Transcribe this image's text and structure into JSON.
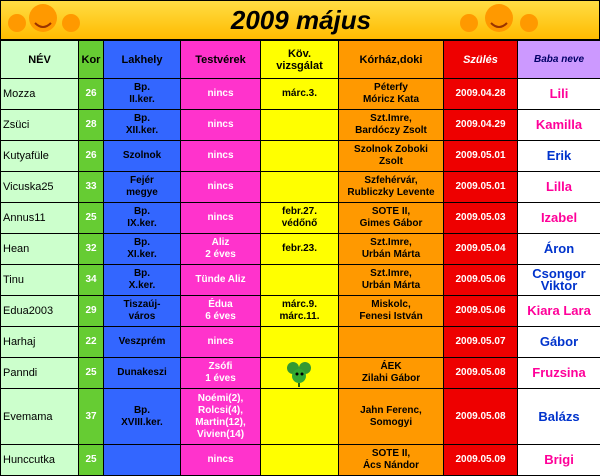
{
  "title": "2009 május",
  "table": {
    "header": [
      "NÉV",
      "Kor",
      "Lakhely",
      "Testvérek",
      "Köv.\nvizsgálat",
      "Kórház,doki",
      "Szülés",
      "Baba neve"
    ],
    "column_colors": [
      "#ccffcc",
      "#66cc33",
      "#3366ff",
      "#ff33cc",
      "#ffff00",
      "#ff9900",
      "#ee0000",
      "#ffffff"
    ],
    "baby_name_colors": [
      "#ff0099",
      "#ff0099",
      "#0033cc",
      "#ff0099",
      "#ff0099",
      "#0033cc",
      "#0033cc",
      "#ff0099",
      "#0033cc",
      "#ff0099",
      "#0033cc",
      "#ff0099"
    ],
    "rows": [
      [
        "Mozza",
        "26",
        "Bp.\nII.ker.",
        "nincs",
        "márc.3.",
        "Péterfy\nMóricz Kata",
        "2009.04.28",
        "Lili"
      ],
      [
        "Zsüci",
        "28",
        "Bp.\nXII.ker.",
        "nincs",
        null,
        "Szt.Imre,\nBardóczy Zsolt",
        "2009.04.29",
        "Kamilla"
      ],
      [
        "Kutyafüle",
        "26",
        "Szolnok",
        "nincs",
        null,
        "Szolnok Zoboki\nZsolt",
        "2009.05.01",
        "Erik"
      ],
      [
        "Vicuska25",
        "33",
        "Fejér\nmegye",
        "nincs",
        null,
        "Szfehérvár,\nRubliczky Levente",
        "2009.05.01",
        "Lilla"
      ],
      [
        "Annus11",
        "25",
        "Bp.\nIX.ker.",
        "nincs",
        "febr.27.\nvédőnő",
        "SOTE II,\nGimes Gábor",
        "2009.05.03",
        "Izabel"
      ],
      [
        "Hean",
        "32",
        "Bp.\nXI.ker.",
        "Aliz\n2 éves",
        "febr.23.",
        "Szt.Imre,\nUrbán Márta",
        "2009.05.04",
        "Áron"
      ],
      [
        "Tinu",
        "34",
        "Bp.\nX.ker.",
        "Tünde Aliz",
        null,
        "Szt.Imre,\nUrbán Márta",
        "2009.05.06",
        "Csongor\nViktor"
      ],
      [
        "Edua2003",
        "29",
        "Tiszaúj-\nváros",
        "Édua\n6 éves",
        "márc.9.\nmárc.11.",
        "Miskolc,\nFenesi István",
        "2009.05.06",
        "Kiara Lara"
      ],
      [
        "Harhaj",
        "22",
        "Veszprém",
        "nincs",
        null,
        null,
        "2009.05.07",
        "Gábor"
      ],
      [
        "Panndi",
        "25",
        "Dunakeszi",
        "Zsófi\n1 éves",
        null,
        "ÁEK\nZilahi Gábor",
        "2009.05.08",
        "Fruzsina"
      ],
      [
        "Evemama",
        "37",
        "Bp.\nXVIII.ker.",
        "Noémi(2),\nRolcsi(4),\nMartin(12),\nVivien(14)",
        null,
        "Jahn Ferenc,\nSomogyi",
        "2009.05.08",
        "Balázs"
      ],
      [
        "Hunccutka",
        "25",
        null,
        "nincs",
        null,
        "SOTE II,\nÁcs Nándor",
        "2009.05.09",
        "Brigi"
      ]
    ]
  }
}
